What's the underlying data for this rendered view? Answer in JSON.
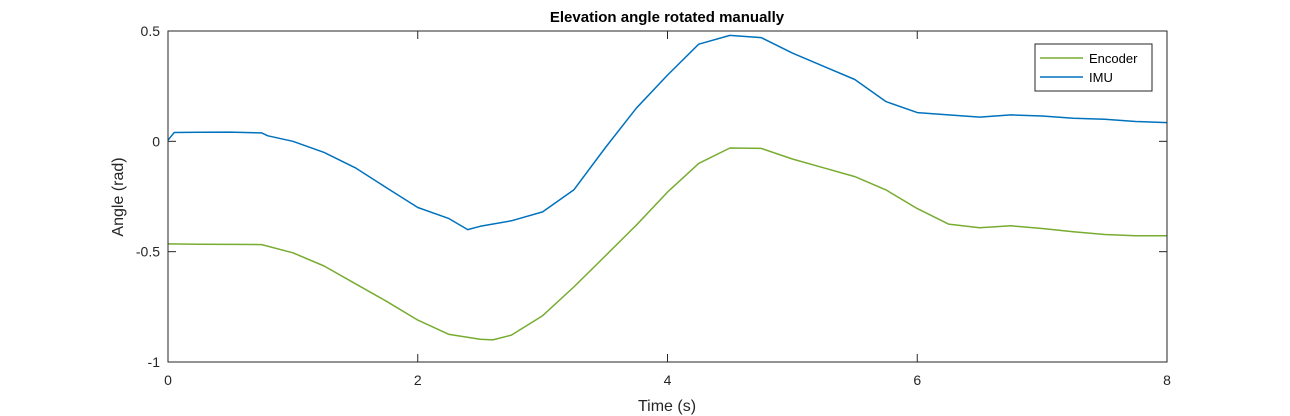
{
  "chart_data": {
    "type": "line",
    "title": "Elevation angle rotated manually",
    "xlabel": "Time (s)",
    "ylabel": "Angle (rad)",
    "xlim": [
      0,
      8
    ],
    "ylim": [
      -1,
      0.5
    ],
    "xticks": [
      0,
      2,
      4,
      6,
      8
    ],
    "yticks": [
      -1,
      -0.5,
      0,
      0.5
    ],
    "xtick_labels": [
      "0",
      "2",
      "4",
      "6",
      "8"
    ],
    "ytick_labels": [
      "-1",
      "-0.5",
      "0",
      "0.5"
    ],
    "grid": false,
    "legend_position": "top-right",
    "series": [
      {
        "name": "Encoder",
        "color": "#77AC30",
        "x": [
          0,
          0.25,
          0.5,
          0.75,
          1.0,
          1.25,
          1.5,
          1.75,
          2.0,
          2.25,
          2.5,
          2.6,
          2.75,
          3.0,
          3.25,
          3.5,
          3.75,
          4.0,
          4.25,
          4.5,
          4.75,
          5.0,
          5.25,
          5.5,
          5.75,
          6.0,
          6.25,
          6.5,
          6.75,
          7.0,
          7.25,
          7.5,
          7.75,
          8.0
        ],
        "y": [
          -0.465,
          -0.466,
          -0.467,
          -0.468,
          -0.505,
          -0.565,
          -0.645,
          -0.725,
          -0.81,
          -0.875,
          -0.897,
          -0.9,
          -0.878,
          -0.79,
          -0.66,
          -0.52,
          -0.38,
          -0.23,
          -0.1,
          -0.03,
          -0.032,
          -0.08,
          -0.12,
          -0.16,
          -0.22,
          -0.305,
          -0.375,
          -0.392,
          -0.383,
          -0.395,
          -0.41,
          -0.422,
          -0.428,
          -0.428
        ]
      },
      {
        "name": "IMU",
        "color": "#0072BD",
        "x": [
          0,
          0.05,
          0.25,
          0.5,
          0.75,
          0.8,
          1.0,
          1.25,
          1.5,
          1.75,
          2.0,
          2.25,
          2.4,
          2.5,
          2.75,
          3.0,
          3.25,
          3.5,
          3.75,
          4.0,
          4.25,
          4.5,
          4.75,
          5.0,
          5.25,
          5.5,
          5.75,
          6.0,
          6.25,
          6.5,
          6.75,
          7.0,
          7.25,
          7.5,
          7.75,
          8.0
        ],
        "y": [
          0.005,
          0.04,
          0.041,
          0.042,
          0.038,
          0.025,
          0.0,
          -0.05,
          -0.12,
          -0.21,
          -0.3,
          -0.35,
          -0.4,
          -0.385,
          -0.36,
          -0.32,
          -0.22,
          -0.03,
          0.15,
          0.3,
          0.44,
          0.48,
          0.47,
          0.4,
          0.34,
          0.28,
          0.18,
          0.13,
          0.12,
          0.11,
          0.12,
          0.115,
          0.105,
          0.1,
          0.09,
          0.085
        ]
      }
    ]
  }
}
